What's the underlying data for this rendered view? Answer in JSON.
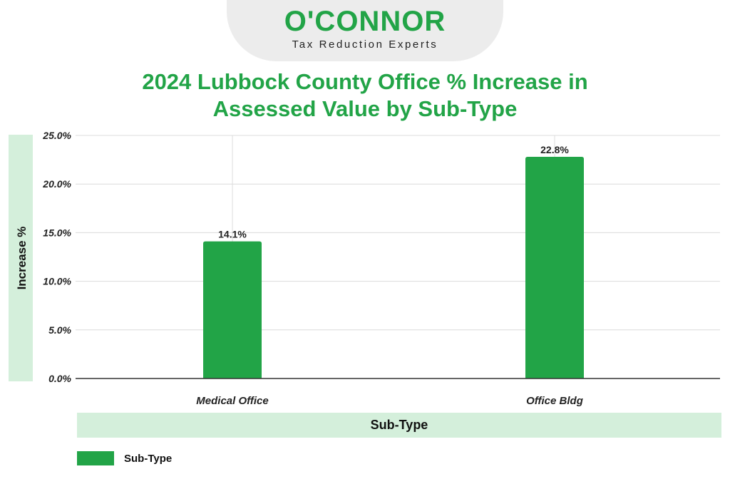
{
  "logo": {
    "name_part1": "O'C",
    "name_part2": "ONNOR",
    "tagline": "Tax Reduction Experts"
  },
  "colors": {
    "brand_green": "#22a447",
    "light_green": "#d4efdb",
    "grid": "#dcdcdc"
  },
  "chart_data": {
    "type": "bar",
    "title_line1": "2024 Lubbock County Office % Increase in",
    "title_line2": "Assessed Value by Sub-Type",
    "xlabel": "Sub-Type",
    "ylabel": "Increase %",
    "categories": [
      "Medical Office",
      "Office Bldg"
    ],
    "series": [
      {
        "name": "Sub-Type",
        "values": [
          14.1,
          22.8
        ]
      }
    ],
    "data_labels": [
      "14.1%",
      "22.8%"
    ],
    "ylim": [
      0,
      25
    ],
    "yticks": [
      0,
      5,
      10,
      15,
      20,
      25
    ],
    "ytick_labels": [
      "0.0%",
      "5.0%",
      "10.0%",
      "15.0%",
      "20.0%",
      "25.0%"
    ],
    "grid": true,
    "legend": "bottom-left"
  }
}
